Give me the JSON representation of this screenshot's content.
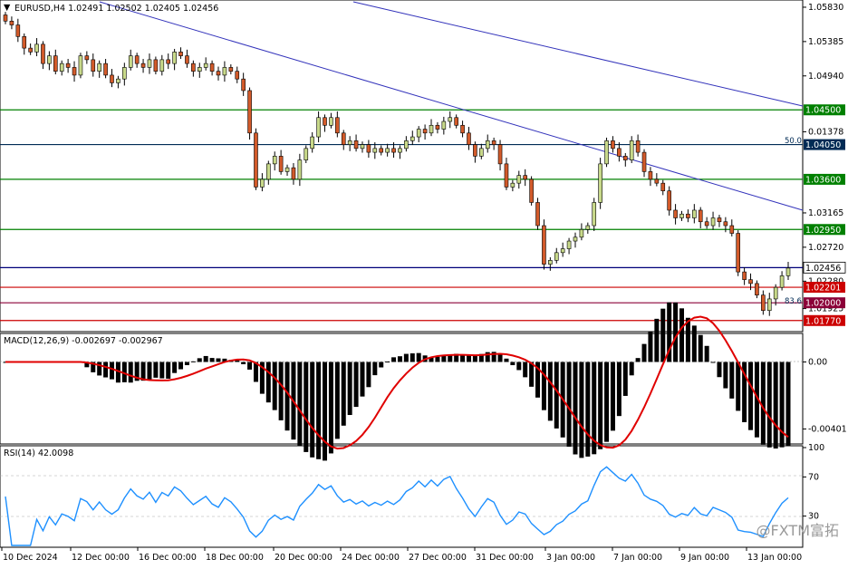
{
  "header": {
    "symbol_line": "EURUSD,H4  1.02491  1.02502  1.02405  1.02456"
  },
  "watermark": "@FXTM富拓",
  "price_panel": {
    "axis_ticks": [
      "1.05830",
      "1.05385",
      "1.04940",
      "1.03165",
      "1.02720",
      "1.02280",
      "1.01925"
    ],
    "levels": [
      {
        "value": "1.04500",
        "color": "#008000"
      },
      {
        "value": "1.04050",
        "color": "#002b55"
      },
      {
        "value": "1.03600",
        "color": "#008000"
      },
      {
        "value": "1.02950",
        "color": "#008000"
      },
      {
        "value": "1.02456",
        "color": "#00007a"
      },
      {
        "value": "1.02201",
        "color": "#cc0000"
      },
      {
        "value": "1.02000",
        "color": "#8b0038"
      },
      {
        "value": "1.01770",
        "color": "#cc0000"
      }
    ],
    "fib_labels": [
      "50.0",
      "83.6"
    ]
  },
  "macd_panel": {
    "label": "MACD(12,26,9) -0.002697 -0.002967",
    "axis_ticks": [
      "0.01378",
      "0.00",
      "-0.00401"
    ]
  },
  "rsi_panel": {
    "label": "RSI(14) 42.0098",
    "axis_ticks": [
      "100",
      "70",
      "30"
    ]
  },
  "time_axis": [
    "10 Dec 2024",
    "12 Dec 00:00",
    "16 Dec 00:00",
    "18 Dec 00:00",
    "20 Dec 00:00",
    "24 Dec 00:00",
    "27 Dec 00:00",
    "31 Dec 00:00",
    "3 Jan 00:00",
    "7 Jan 00:00",
    "9 Jan 00:00",
    "13 Jan 00:00"
  ],
  "chart_data": [
    {
      "type": "candlestick",
      "title": "EURUSD,H4",
      "ylim": [
        1.0165,
        1.059
      ],
      "ohlc_last": {
        "open": 1.02491,
        "high": 1.02502,
        "low": 1.02405,
        "close": 1.02456
      },
      "horizontal_levels": [
        1.045,
        1.0405,
        1.036,
        1.0295,
        1.02456,
        1.02201,
        1.02,
        1.0177
      ],
      "close_path": [
        1.0565,
        1.056,
        1.0545,
        1.053,
        1.0525,
        1.0535,
        1.051,
        1.052,
        1.05,
        1.051,
        1.0505,
        1.0495,
        1.052,
        1.0515,
        1.05,
        1.051,
        1.0495,
        1.0485,
        1.049,
        1.0505,
        1.052,
        1.051,
        1.0505,
        1.0515,
        1.05,
        1.0515,
        1.051,
        1.0525,
        1.052,
        1.051,
        1.05,
        1.0505,
        1.051,
        1.05,
        1.0495,
        1.0505,
        1.05,
        1.049,
        1.0475,
        1.042,
        1.035,
        1.036,
        1.038,
        1.039,
        1.037,
        1.0375,
        1.036,
        1.0385,
        1.04,
        1.0415,
        1.044,
        1.043,
        1.044,
        1.042,
        1.0405,
        1.041,
        1.04,
        1.0405,
        1.0395,
        1.04,
        1.0395,
        1.04,
        1.0395,
        1.04,
        1.041,
        1.0415,
        1.0425,
        1.042,
        1.043,
        1.0425,
        1.0435,
        1.044,
        1.043,
        1.042,
        1.0405,
        1.039,
        1.04,
        1.041,
        1.0405,
        1.038,
        1.035,
        1.0355,
        1.0365,
        1.036,
        1.033,
        1.03,
        1.025,
        1.0255,
        1.0265,
        1.027,
        1.028,
        1.0285,
        1.0295,
        1.03,
        1.033,
        1.038,
        1.041,
        1.04,
        1.039,
        1.0385,
        1.041,
        1.0395,
        1.037,
        1.036,
        1.0355,
        1.0345,
        1.032,
        1.031,
        1.0315,
        1.031,
        1.032,
        1.0305,
        1.03,
        1.031,
        1.0305,
        1.03,
        1.029,
        1.024,
        1.023,
        1.0225,
        1.021,
        1.019,
        1.0205,
        1.022,
        1.0235,
        1.0245
      ]
    },
    {
      "type": "bar",
      "title": "MACD(12,26,9)",
      "values_last": {
        "macd": -0.002697,
        "signal": -0.002967
      },
      "ylim": [
        -0.0048,
        0.0016
      ]
    },
    {
      "type": "line",
      "title": "RSI(14)",
      "values_last": {
        "rsi": 42.0098
      },
      "ylim": [
        0,
        100
      ],
      "levels": [
        70,
        30
      ]
    }
  ]
}
